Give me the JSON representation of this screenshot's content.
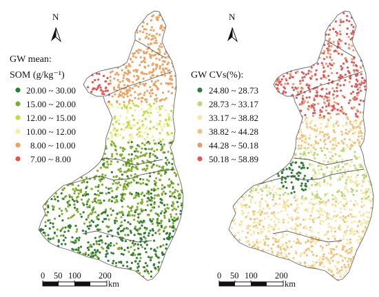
{
  "panels": [
    {
      "id": "left",
      "title_line1": "GW mean:",
      "title_line2": "SOM (g/kg⁻¹)",
      "north_label": "N",
      "legend": [
        {
          "label": "20.00 ~ 30.00",
          "color": "#2f7d32"
        },
        {
          "label": "15.00 ~ 20.00",
          "color": "#7fae2b"
        },
        {
          "label": "12.00 ~ 15.00",
          "color": "#c4dc3c"
        },
        {
          "label": "10.00 ~ 12.00",
          "color": "#f3efa0"
        },
        {
          "label": "8.00 ~ 10.00",
          "color": "#f0a15c"
        },
        {
          "label": "7.00 ~ 8.00",
          "color": "#e8524a"
        }
      ],
      "scale": {
        "ticks": [
          "0",
          "50",
          "100",
          "200"
        ],
        "unit": "km"
      }
    },
    {
      "id": "right",
      "title_line1": "GW CVs(%):",
      "title_line2": "",
      "north_label": "N",
      "legend": [
        {
          "label": "24.80 ~ 28.73",
          "color": "#2f7d32"
        },
        {
          "label": "28.73 ~ 33.17",
          "color": "#b7d97a"
        },
        {
          "label": "33.17 ~ 38.82",
          "color": "#f5e7a6"
        },
        {
          "label": "38.82 ~ 44.28",
          "color": "#f2c27a"
        },
        {
          "label": "44.28 ~ 50.18",
          "color": "#eb9a6a"
        },
        {
          "label": "50.18 ~ 58.89",
          "color": "#e0565a"
        }
      ],
      "scale": {
        "ticks": [
          "0",
          "50",
          "100",
          "200"
        ],
        "unit": "km"
      }
    }
  ]
}
